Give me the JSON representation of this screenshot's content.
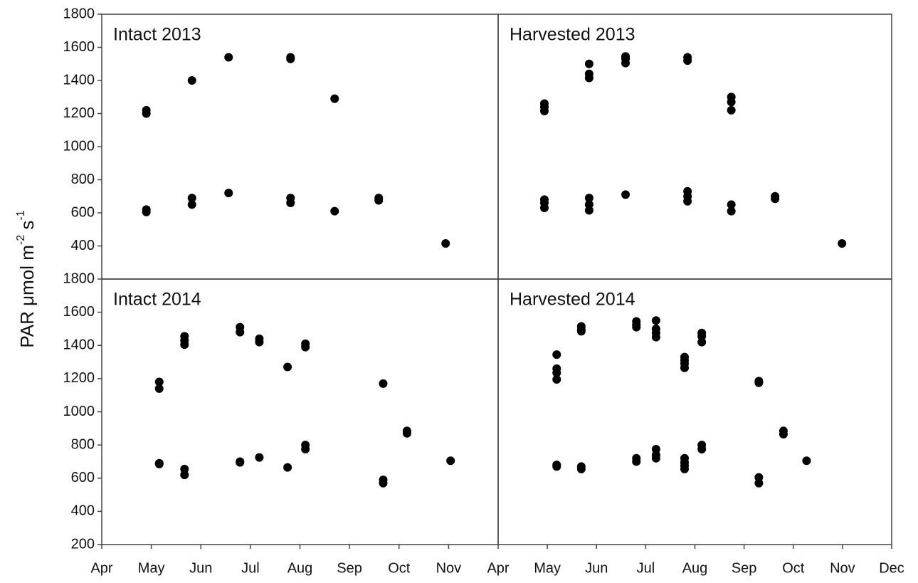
{
  "ylabel": {
    "text": "PAR μmol m",
    "sup1": "-2",
    "mid": " s",
    "sup2": "-1"
  },
  "chart_data": [
    {
      "type": "scatter",
      "title": "Intact 2013",
      "color": "#000000",
      "xlim": [
        4,
        12
      ],
      "ylim": [
        200,
        1800
      ],
      "yticks": [
        400,
        600,
        800,
        1000,
        1200,
        1400,
        1600,
        1800
      ],
      "x": [
        4.9,
        4.9,
        4.9,
        4.9,
        5.82,
        5.82,
        5.82,
        6.56,
        6.56,
        7.81,
        7.81,
        7.81,
        7.81,
        8.7,
        8.7,
        9.59,
        9.59,
        10.94
      ],
      "values": [
        1220,
        1200,
        620,
        605,
        1400,
        690,
        650,
        1540,
        720,
        1540,
        1530,
        690,
        660,
        1290,
        610,
        690,
        675,
        415
      ]
    },
    {
      "type": "scatter",
      "title": "Harvested 2013",
      "color": "#000000",
      "xlim": [
        4,
        12
      ],
      "ylim": [
        200,
        1800
      ],
      "x": [
        4.94,
        4.94,
        4.94,
        4.94,
        4.94,
        4.94,
        5.85,
        5.85,
        5.85,
        5.85,
        5.85,
        5.85,
        6.59,
        6.59,
        6.59,
        6.59,
        7.85,
        7.85,
        7.85,
        7.85,
        7.85,
        8.74,
        8.74,
        8.74,
        8.74,
        8.74,
        9.63,
        9.63,
        10.99
      ],
      "values": [
        1260,
        1240,
        1215,
        680,
        660,
        630,
        1500,
        1440,
        1415,
        690,
        650,
        615,
        1545,
        1530,
        1505,
        710,
        1540,
        1520,
        730,
        700,
        670,
        1300,
        1270,
        1220,
        650,
        610,
        700,
        685,
        415
      ]
    },
    {
      "type": "scatter",
      "title": "Intact 2014",
      "color": "#000000",
      "xlim": [
        4,
        12
      ],
      "ylim": [
        200,
        1800
      ],
      "yticks": [
        200,
        400,
        600,
        800,
        1000,
        1200,
        1400,
        1600,
        1800
      ],
      "xticks": [
        {
          "value": 4,
          "label": "Apr"
        },
        {
          "value": 5,
          "label": "May"
        },
        {
          "value": 6,
          "label": "Jun"
        },
        {
          "value": 7,
          "label": "Jul"
        },
        {
          "value": 8,
          "label": "Aug"
        },
        {
          "value": 9,
          "label": "Sep"
        },
        {
          "value": 10,
          "label": "Oct"
        },
        {
          "value": 11,
          "label": "Nov"
        }
      ],
      "x": [
        5.16,
        5.16,
        5.16,
        5.16,
        5.67,
        5.67,
        5.67,
        5.67,
        5.67,
        6.79,
        6.79,
        6.79,
        6.79,
        7.18,
        7.18,
        7.18,
        7.75,
        7.75,
        8.11,
        8.11,
        8.11,
        8.11,
        9.68,
        9.68,
        9.68,
        10.16,
        10.16,
        11.04
      ],
      "values": [
        1180,
        1140,
        690,
        685,
        1455,
        1430,
        1405,
        655,
        620,
        1510,
        1480,
        700,
        695,
        1440,
        1420,
        725,
        1270,
        665,
        1410,
        1390,
        800,
        775,
        1170,
        590,
        570,
        885,
        870,
        705
      ]
    },
    {
      "type": "scatter",
      "title": "Harvested 2014",
      "color": "#000000",
      "xlim": [
        4,
        12
      ],
      "ylim": [
        200,
        1800
      ],
      "xticks": [
        {
          "value": 4,
          "label": "Apr"
        },
        {
          "value": 5,
          "label": "May"
        },
        {
          "value": 6,
          "label": "Jun"
        },
        {
          "value": 7,
          "label": "Jul"
        },
        {
          "value": 8,
          "label": "Aug"
        },
        {
          "value": 9,
          "label": "Sep"
        },
        {
          "value": 10,
          "label": "Oct"
        },
        {
          "value": 11,
          "label": "Nov"
        },
        {
          "value": 12,
          "label": "Dec"
        }
      ],
      "x": [
        5.19,
        5.19,
        5.19,
        5.19,
        5.19,
        5.19,
        5.69,
        5.69,
        5.69,
        5.69,
        5.69,
        6.81,
        6.81,
        6.81,
        6.81,
        6.81,
        7.21,
        7.21,
        7.21,
        7.21,
        7.21,
        7.21,
        7.21,
        7.79,
        7.79,
        7.79,
        7.79,
        7.79,
        7.79,
        7.79,
        7.79,
        8.14,
        8.14,
        8.14,
        8.14,
        8.14,
        9.3,
        9.3,
        9.3,
        9.3,
        9.8,
        9.8,
        10.27
      ],
      "values": [
        1345,
        1260,
        1235,
        1195,
        680,
        670,
        1515,
        1495,
        1485,
        670,
        655,
        1545,
        1525,
        1510,
        720,
        700,
        1550,
        1500,
        1475,
        1450,
        775,
        740,
        720,
        1330,
        1310,
        1290,
        1265,
        720,
        695,
        675,
        655,
        1475,
        1455,
        1420,
        800,
        775,
        1185,
        1175,
        605,
        570,
        885,
        865,
        705
      ]
    }
  ]
}
